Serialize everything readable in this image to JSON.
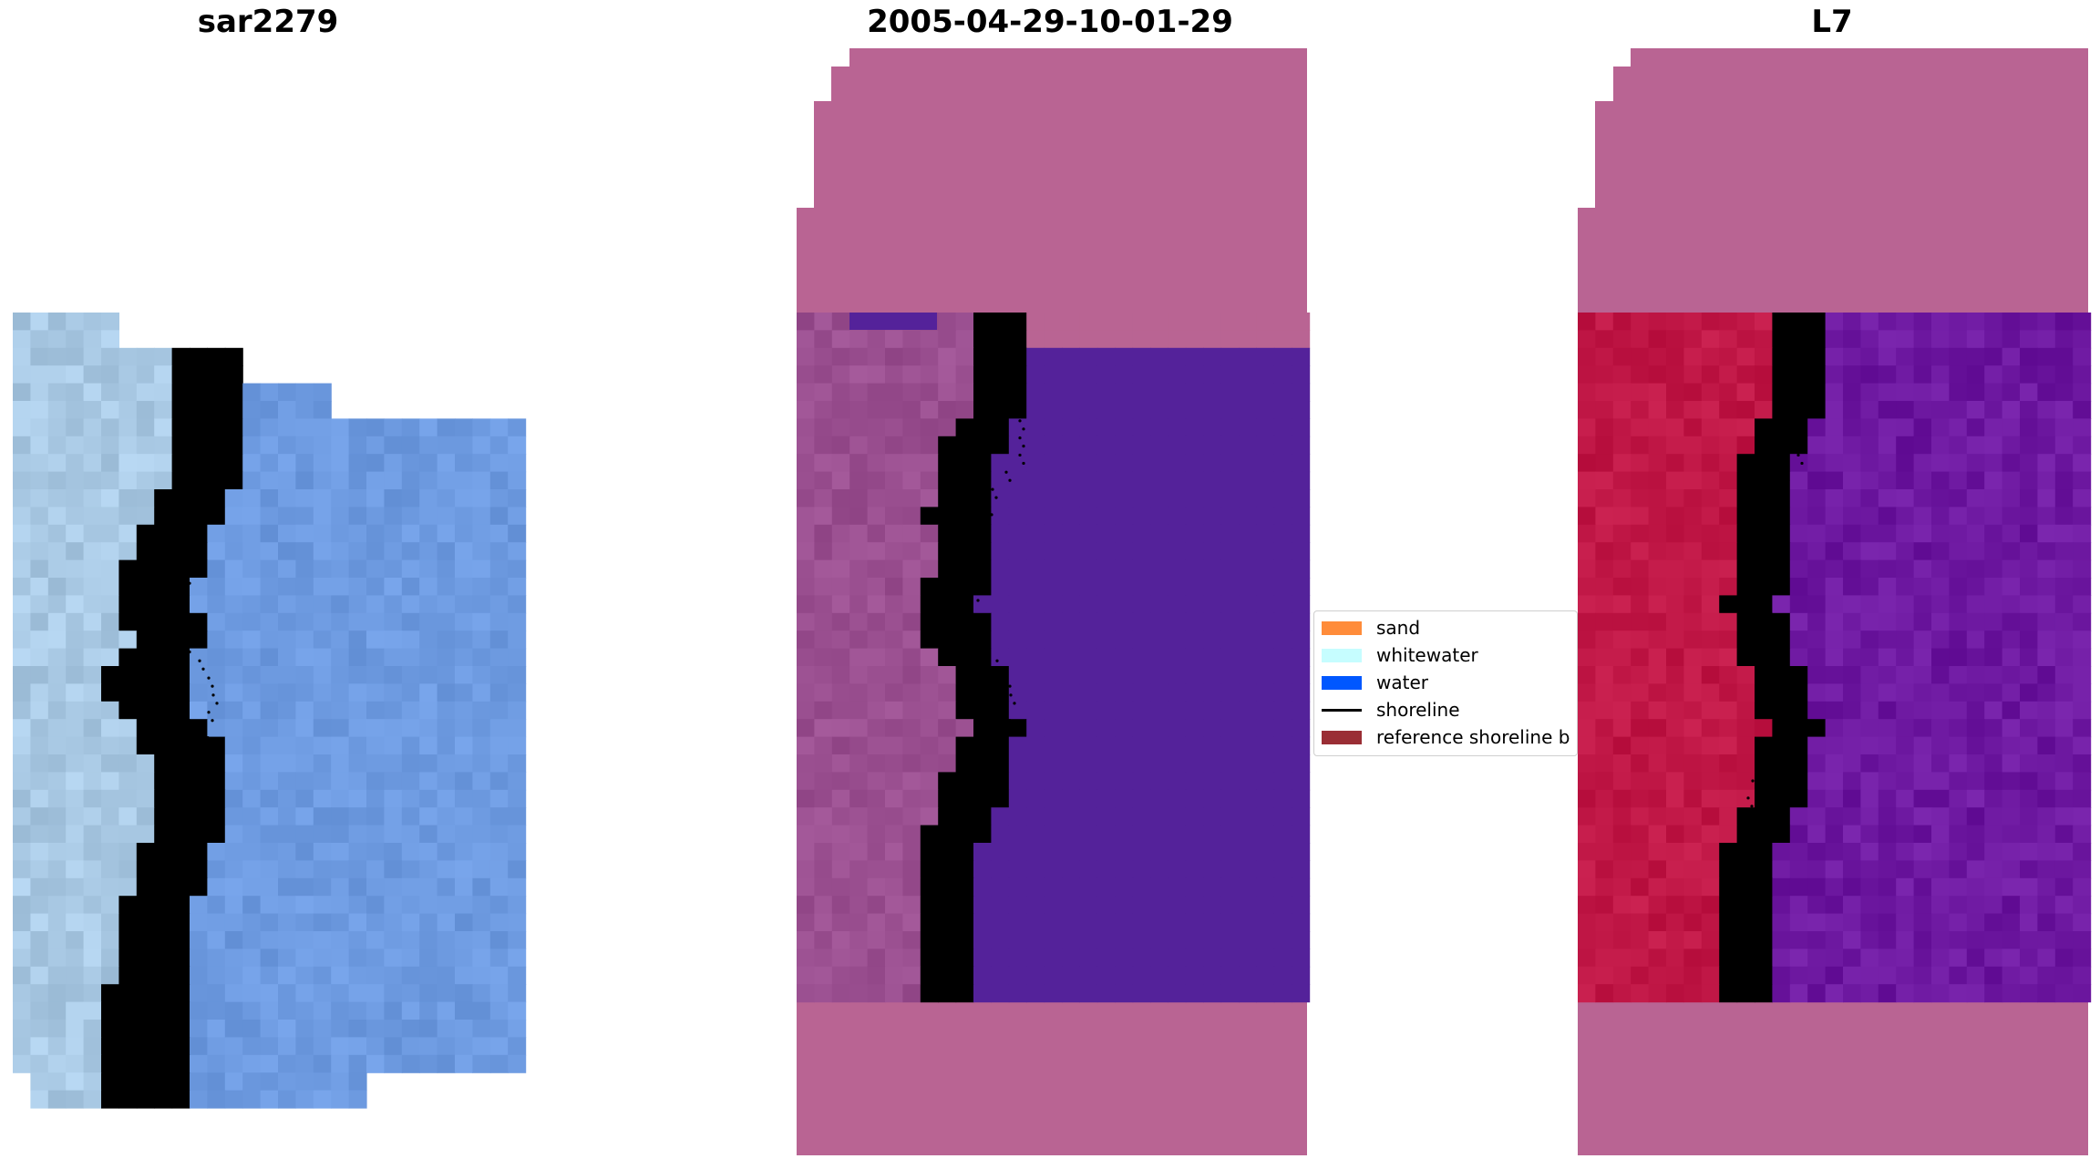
{
  "panels": [
    {
      "title": "sar2279"
    },
    {
      "title": "2005-04-29-10-01-29"
    },
    {
      "title": "L7"
    }
  ],
  "legend": {
    "items": [
      {
        "label": "sand",
        "color": "#ff8c3a",
        "kind": "patch"
      },
      {
        "label": "whitewater",
        "color": "#c6fdff",
        "kind": "patch"
      },
      {
        "label": "water",
        "color": "#0057ff",
        "kind": "patch"
      },
      {
        "label": "shoreline",
        "color": "#000000",
        "kind": "line"
      },
      {
        "label": "reference shoreline b",
        "color": "#9a2e35",
        "kind": "patch"
      }
    ]
  },
  "colors": {
    "rgb_sand": "#a9c9e4",
    "rgb_whitewater": "#f0f4ff",
    "rgb_water": "#6d9ae0",
    "class_land": "#b96493",
    "class_water": "#54229a",
    "class_beach": "#9a4f90",
    "mndwi_land": "#c01746",
    "mndwi_water": "#6d18a0"
  }
}
